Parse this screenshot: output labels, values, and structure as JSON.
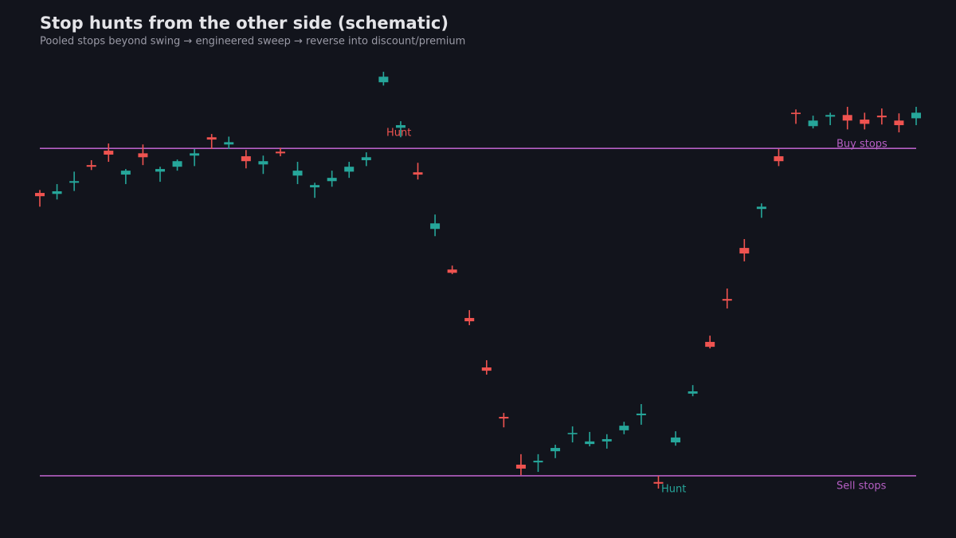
{
  "chart_data": {
    "type": "candlestick",
    "title": "Stop hunts from the other side (schematic)",
    "subtitle": "Pooled stops beyond swing → engineered sweep → reverse into discount/premium",
    "up_color": "#26a69a",
    "down_color": "#ef5350",
    "ylim": [
      -5,
      125
    ],
    "open": [
      86.4,
      86.1,
      89.5,
      94.9,
      99.3,
      92.0,
      98.5,
      92.9,
      94.4,
      97.8,
      103.4,
      101.2,
      97.6,
      95.1,
      99.0,
      91.7,
      88.1,
      90.0,
      92.9,
      96.4,
      120.2,
      106.3,
      92.7,
      75.4,
      63.0,
      48.2,
      33.1,
      18.0,
      3.4,
      4.1,
      7.5,
      12.7,
      9.7,
      10.5,
      13.9,
      18.5,
      -1.9,
      10.2,
      25.1,
      40.9,
      54.0,
      69.6,
      81.5,
      97.6,
      110.9,
      106.8,
      109.7,
      110.2,
      108.8,
      110.0,
      108.5,
      109.2
    ],
    "high": [
      87.3,
      89.1,
      92.9,
      96.4,
      101.5,
      93.7,
      101.2,
      94.4,
      96.6,
      99.8,
      104.4,
      103.6,
      99.5,
      97.8,
      100.2,
      95.9,
      89.5,
      93.2,
      95.9,
      98.8,
      123.4,
      108.3,
      95.6,
      79.8,
      64.2,
      50.6,
      35.3,
      19.2,
      6.6,
      6.6,
      9.5,
      15.1,
      13.4,
      12.7,
      16.5,
      21.9,
      0,
      13.6,
      27.7,
      42.8,
      57.2,
      72.3,
      83.2,
      99.8,
      111.9,
      110.0,
      110.9,
      112.7,
      110.9,
      112.2,
      110.7,
      112.7
    ],
    "low": [
      82.2,
      84.4,
      87.0,
      93.4,
      95.9,
      89.1,
      94.9,
      89.8,
      93.2,
      94.6,
      99.8,
      99.8,
      93.9,
      92.2,
      97.6,
      89.1,
      84.9,
      88.3,
      91.0,
      94.6,
      119.2,
      103.4,
      90.5,
      73.2,
      61.6,
      46.0,
      30.9,
      14.8,
      0.2,
      1.2,
      5.4,
      10.2,
      9.0,
      8.3,
      12.7,
      15.6,
      -3.9,
      9.2,
      24.3,
      38.9,
      51.1,
      65.5,
      78.8,
      94.6,
      107.5,
      106.1,
      107.1,
      105.8,
      105.8,
      107.3,
      104.9,
      107.1
    ],
    "close": [
      85.4,
      86.9,
      90.0,
      94.4,
      98.1,
      93.2,
      97.3,
      93.7,
      96.1,
      98.5,
      102.7,
      101.9,
      96.1,
      96.1,
      98.5,
      93.2,
      88.8,
      91.0,
      94.4,
      97.3,
      121.9,
      107.1,
      92.0,
      77.1,
      62.0,
      47.2,
      32.1,
      17.5,
      2.2,
      4.6,
      8.5,
      13.1,
      10.5,
      11.2,
      15.3,
      19.0,
      -2.4,
      11.7,
      25.8,
      39.4,
      53.5,
      67.9,
      82.2,
      96.1,
      110.5,
      108.5,
      110.2,
      108.5,
      107.5,
      109.5,
      107.1,
      110.9
    ],
    "levels": [
      {
        "name": "Buy stops",
        "value": 100,
        "color": "#b65fc4"
      },
      {
        "name": "Sell stops",
        "value": 0,
        "color": "#b65fc4"
      }
    ],
    "annotations": [
      {
        "text": "Hunt",
        "color": "#ef5350"
      },
      {
        "text": "Hunt",
        "color": "#26a69a"
      }
    ]
  }
}
